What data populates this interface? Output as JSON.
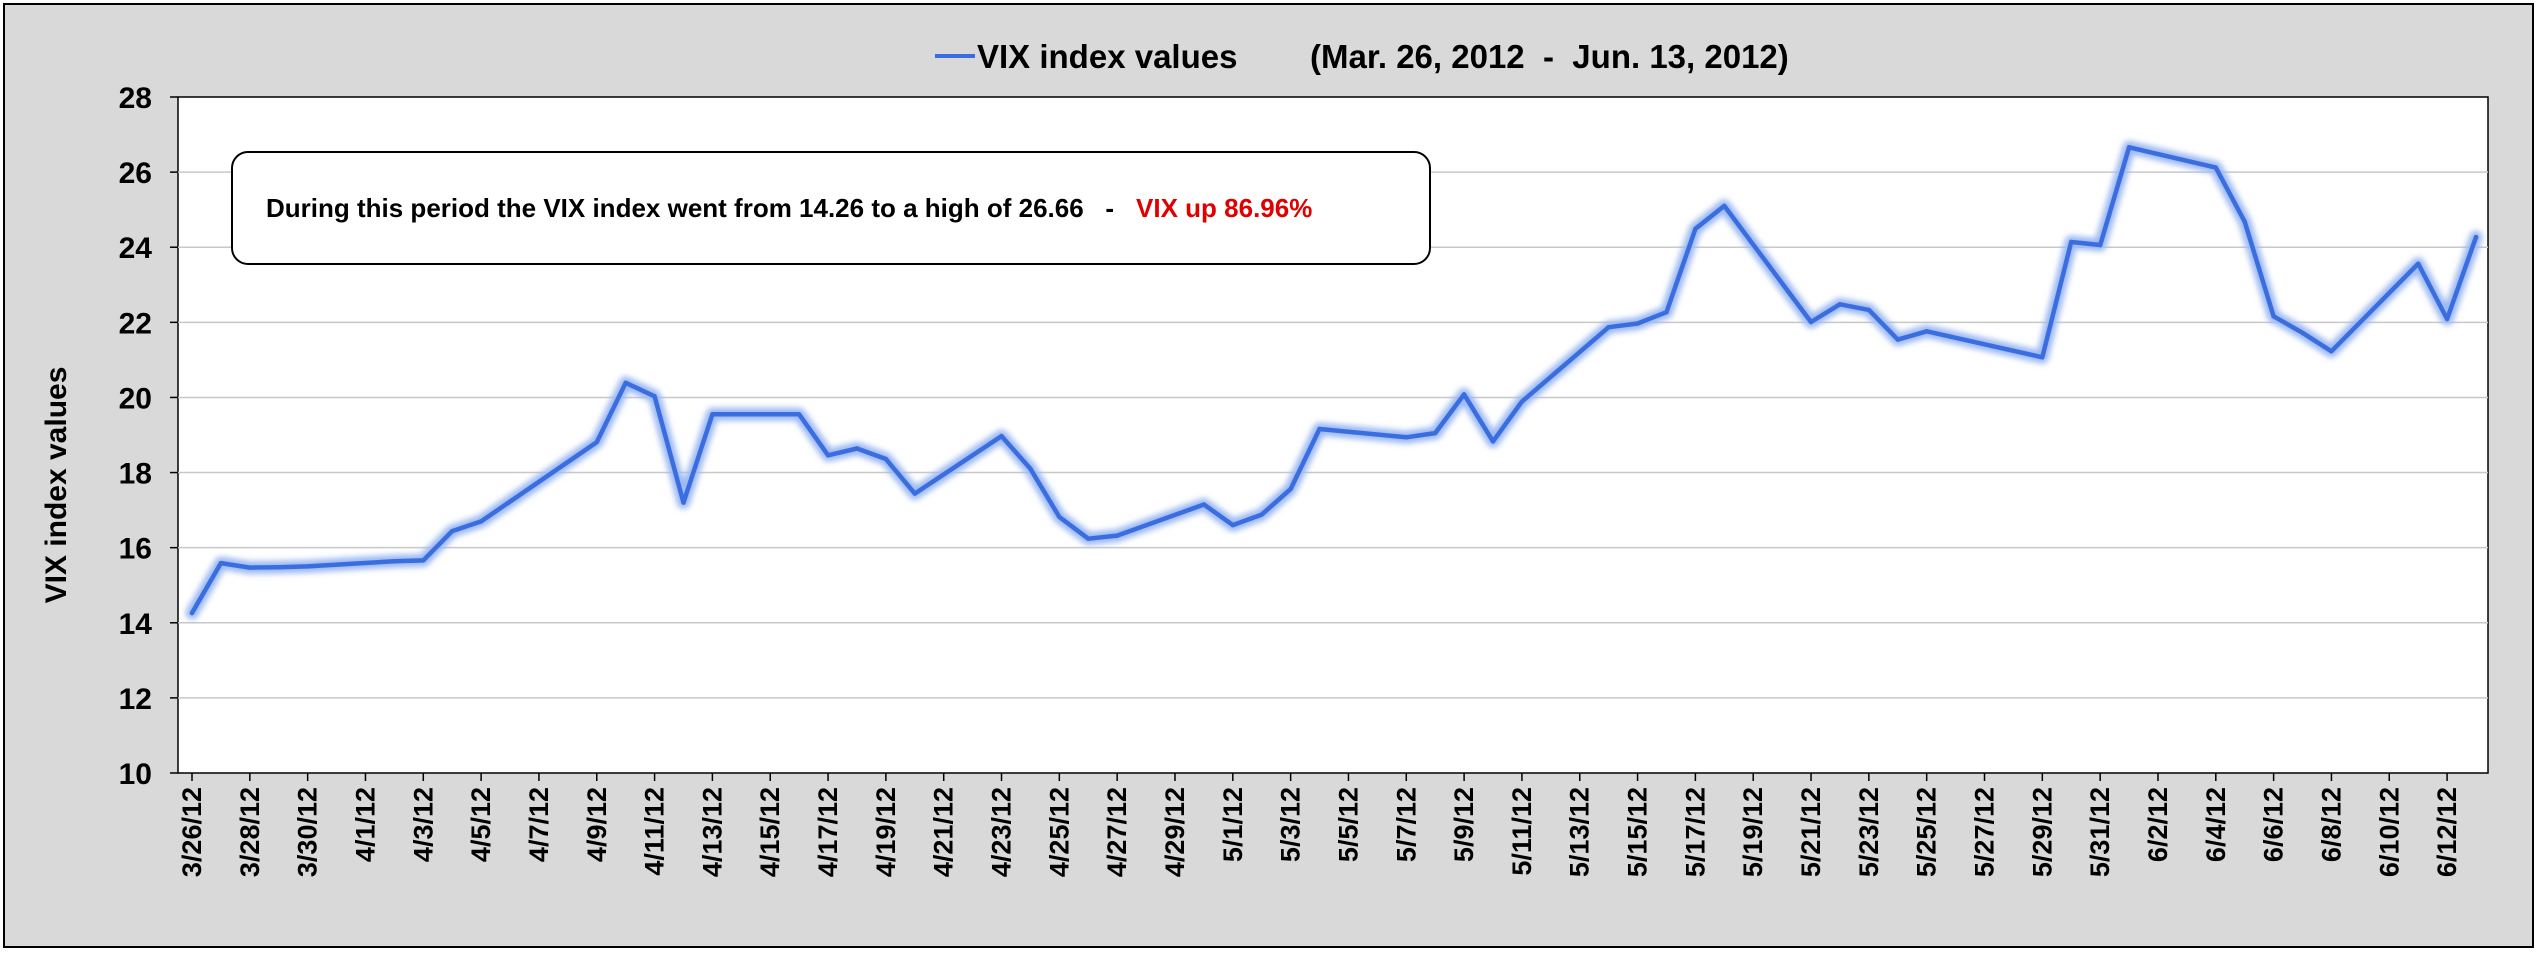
{
  "chart_data": {
    "type": "line",
    "legend": {
      "series_label": "VIX index values",
      "date_range": "(Mar. 26, 2012  -  Jun. 13, 2012)",
      "position": "top"
    },
    "annotation": {
      "text": "During this period the VIX index went from 14.26 to a high of 26.66   -",
      "highlight": "VIX up 86.96%",
      "highlight_color": "#e00000"
    },
    "ylabel": "VIX index values",
    "ylim": [
      10,
      28
    ],
    "yticks": [
      10,
      12,
      14,
      16,
      18,
      20,
      22,
      24,
      26,
      28
    ],
    "grid": true,
    "series_color": "#3a6ee0",
    "x_start": "2012-03-26",
    "x_end": "2012-06-13",
    "x_tick_labels": [
      "3/26/12",
      "3/28/12",
      "3/30/12",
      "4/1/12",
      "4/3/12",
      "4/5/12",
      "4/7/12",
      "4/9/12",
      "4/11/12",
      "4/13/12",
      "4/15/12",
      "4/17/12",
      "4/19/12",
      "4/21/12",
      "4/23/12",
      "4/25/12",
      "4/27/12",
      "4/29/12",
      "5/1/12",
      "5/3/12",
      "5/5/12",
      "5/7/12",
      "5/9/12",
      "5/11/12",
      "5/13/12",
      "5/15/12",
      "5/17/12",
      "5/19/12",
      "5/21/12",
      "5/23/12",
      "5/25/12",
      "5/27/12",
      "5/29/12",
      "5/31/12",
      "6/2/12",
      "6/4/12",
      "6/6/12",
      "6/8/12",
      "6/10/12",
      "6/12/12"
    ],
    "series": [
      {
        "name": "VIX index values",
        "points": [
          [
            "2012-03-26",
            14.26
          ],
          [
            "2012-03-27",
            15.59
          ],
          [
            "2012-03-28",
            15.47
          ],
          [
            "2012-03-29",
            15.48
          ],
          [
            "2012-03-30",
            15.5
          ],
          [
            "2012-04-02",
            15.64
          ],
          [
            "2012-04-03",
            15.66
          ],
          [
            "2012-04-04",
            16.44
          ],
          [
            "2012-04-05",
            16.7
          ],
          [
            "2012-04-09",
            18.81
          ],
          [
            "2012-04-10",
            20.39
          ],
          [
            "2012-04-11",
            20.03
          ],
          [
            "2012-04-12",
            17.2
          ],
          [
            "2012-04-13",
            19.55
          ],
          [
            "2012-04-16",
            19.55
          ],
          [
            "2012-04-17",
            18.46
          ],
          [
            "2012-04-18",
            18.64
          ],
          [
            "2012-04-19",
            18.36
          ],
          [
            "2012-04-20",
            17.44
          ],
          [
            "2012-04-23",
            18.97
          ],
          [
            "2012-04-24",
            18.1
          ],
          [
            "2012-04-25",
            16.82
          ],
          [
            "2012-04-26",
            16.24
          ],
          [
            "2012-04-27",
            16.32
          ],
          [
            "2012-04-30",
            17.15
          ],
          [
            "2012-05-01",
            16.6
          ],
          [
            "2012-05-02",
            16.88
          ],
          [
            "2012-05-03",
            17.56
          ],
          [
            "2012-05-04",
            19.16
          ],
          [
            "2012-05-07",
            18.94
          ],
          [
            "2012-05-08",
            19.05
          ],
          [
            "2012-05-09",
            20.08
          ],
          [
            "2012-05-10",
            18.83
          ],
          [
            "2012-05-11",
            19.89
          ],
          [
            "2012-05-14",
            21.87
          ],
          [
            "2012-05-15",
            21.97
          ],
          [
            "2012-05-16",
            22.27
          ],
          [
            "2012-05-17",
            24.49
          ],
          [
            "2012-05-18",
            25.1
          ],
          [
            "2012-05-21",
            22.01
          ],
          [
            "2012-05-22",
            22.48
          ],
          [
            "2012-05-23",
            22.33
          ],
          [
            "2012-05-24",
            21.54
          ],
          [
            "2012-05-25",
            21.76
          ],
          [
            "2012-05-29",
            21.07
          ],
          [
            "2012-05-30",
            24.14
          ],
          [
            "2012-05-31",
            24.06
          ],
          [
            "2012-06-01",
            26.66
          ],
          [
            "2012-06-04",
            26.12
          ],
          [
            "2012-06-05",
            24.68
          ],
          [
            "2012-06-06",
            22.16
          ],
          [
            "2012-06-07",
            21.72
          ],
          [
            "2012-06-08",
            21.23
          ],
          [
            "2012-06-11",
            23.56
          ],
          [
            "2012-06-12",
            22.09
          ],
          [
            "2012-06-13",
            24.27
          ]
        ]
      }
    ]
  }
}
